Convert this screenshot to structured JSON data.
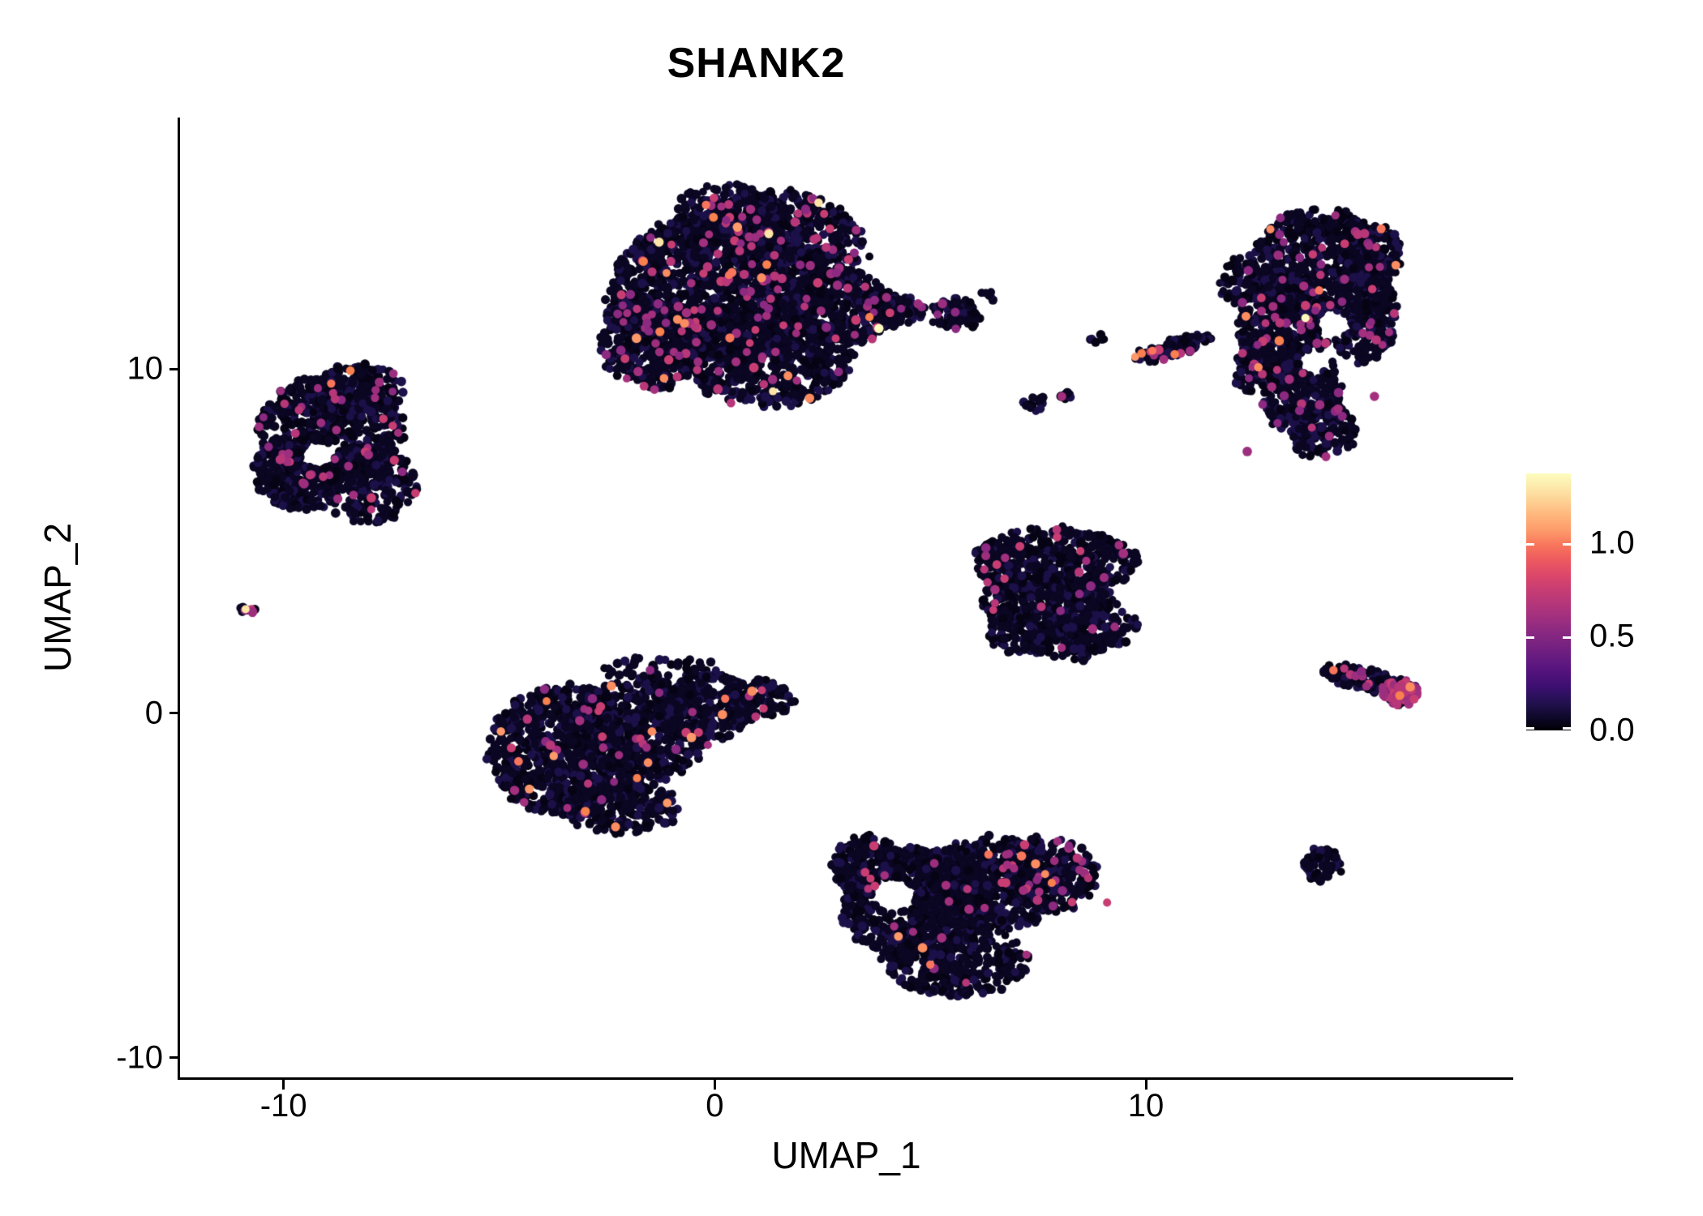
{
  "title": "SHANK2",
  "axes": {
    "x": {
      "label": "UMAP_1",
      "range": [
        -12.4,
        18.5
      ],
      "ticks": [
        -10,
        0,
        10
      ],
      "tick_labels": [
        "-10",
        "0",
        "10"
      ]
    },
    "y": {
      "label": "UMAP_2",
      "range": [
        -10.6,
        17.3
      ],
      "ticks": [
        -10,
        0,
        10
      ],
      "tick_labels": [
        "-10",
        "0",
        "10"
      ]
    }
  },
  "legend": {
    "range": [
      0,
      1.37
    ],
    "ticks": [
      0,
      0.5,
      1.0
    ],
    "tick_labels": [
      "0.0",
      "0.5",
      "1.0"
    ],
    "stops": [
      "#000004",
      "#10092d",
      "#231151",
      "#3b0f70",
      "#51127c",
      "#641a80",
      "#782281",
      "#8c2981",
      "#a3307e",
      "#b73779",
      "#ca3e72",
      "#de4968",
      "#ee5b5e",
      "#f8765c",
      "#fd9a6a",
      "#feb47b",
      "#fecf92",
      "#fce8aa",
      "#fcfdbf"
    ]
  },
  "style": {
    "point_radius": 5.3,
    "palette": {
      "zero": [
        "#0b0723",
        "#0b0723",
        "#0b0723",
        "#060414",
        "#1c1048"
      ],
      "mid": [
        "#8c2981",
        "#a3307e",
        "#b73779",
        "#c83e73",
        "#9c2e7e"
      ],
      "high": [
        "#f8765c",
        "#fb8d61",
        "#fd9a6a",
        "#f9804f"
      ],
      "top": [
        "#fcfdbf",
        "#fde5a7"
      ]
    }
  },
  "chart_data": {
    "type": "scatter",
    "title": "SHANK2",
    "xlabel": "UMAP_1",
    "ylabel": "UMAP_2",
    "value_label_range": [
      0.0,
      1.37
    ],
    "seed": 123456789,
    "clusters": [
      {
        "name": "top-center",
        "mix": {
          "mid": 0.05,
          "high": 0.005,
          "top": 0.0015
        },
        "blobs": [
          {
            "x": 0.0,
            "y": 12.2,
            "rx": 2.4,
            "ry": 2.3,
            "n": 1150
          },
          {
            "x": 1.4,
            "y": 13.6,
            "rx": 2.0,
            "ry": 1.6,
            "n": 650
          },
          {
            "x": 1.2,
            "y": 10.4,
            "rx": 2.0,
            "ry": 1.5,
            "n": 600
          },
          {
            "x": 2.9,
            "y": 11.8,
            "rx": 1.3,
            "ry": 1.1,
            "n": 300
          },
          {
            "x": -1.5,
            "y": 10.8,
            "rx": 1.2,
            "ry": 1.4,
            "n": 300
          },
          {
            "x": 0.2,
            "y": 14.6,
            "rx": 1.2,
            "ry": 0.8,
            "n": 150
          },
          {
            "x": 4.0,
            "y": 11.7,
            "rx": 0.9,
            "ry": 0.5,
            "n": 90
          },
          {
            "x": 5.6,
            "y": 11.6,
            "rx": 0.55,
            "ry": 0.45,
            "n": 70
          },
          {
            "x": 6.3,
            "y": 12.1,
            "rx": 0.2,
            "ry": 0.15,
            "n": 6
          },
          {
            "x": 0.8,
            "y": 12.0,
            "rx": 3.4,
            "ry": 3.0,
            "n": 130
          }
        ]
      },
      {
        "name": "left",
        "mix": {
          "mid": 0.028,
          "high": 0.002
        },
        "holes": [
          {
            "x": -9.2,
            "y": 7.5,
            "r": 0.4
          }
        ],
        "blobs": [
          {
            "x": -8.9,
            "y": 8.3,
            "rx": 1.7,
            "ry": 1.5,
            "n": 520
          },
          {
            "x": -9.6,
            "y": 7.0,
            "rx": 1.1,
            "ry": 1.1,
            "n": 300
          },
          {
            "x": -8.0,
            "y": 6.6,
            "rx": 1.1,
            "ry": 1.1,
            "n": 260
          },
          {
            "x": -8.3,
            "y": 9.4,
            "rx": 1.1,
            "ry": 0.75,
            "n": 190
          }
        ]
      },
      {
        "name": "tiny-left",
        "mix": {
          "mid": 0.1
        },
        "blobs": [
          {
            "x": -10.8,
            "y": 3.0,
            "rx": 0.17,
            "ry": 0.14,
            "n": 12
          }
        ]
      },
      {
        "name": "mid-left",
        "mix": {
          "mid": 0.02,
          "high": 0.006
        },
        "blobs": [
          {
            "x": -3.4,
            "y": -1.1,
            "rx": 1.85,
            "ry": 1.9,
            "n": 780
          },
          {
            "x": -1.7,
            "y": -0.5,
            "rx": 1.6,
            "ry": 1.5,
            "n": 480
          },
          {
            "x": -0.3,
            "y": 0.2,
            "rx": 1.2,
            "ry": 1.0,
            "n": 260
          },
          {
            "x": 1.0,
            "y": 0.45,
            "rx": 0.85,
            "ry": 0.55,
            "n": 110
          },
          {
            "x": -2.2,
            "y": -2.7,
            "rx": 1.4,
            "ry": 0.8,
            "n": 230
          },
          {
            "x": -1.2,
            "y": 1.2,
            "rx": 1.4,
            "ry": 0.5,
            "n": 55
          }
        ]
      },
      {
        "name": "bottom-center",
        "mix": {
          "mid": 0.012,
          "high": 0.002
        },
        "holes": [
          {
            "x": 4.15,
            "y": -5.3,
            "r": 0.5
          }
        ],
        "blobs": [
          {
            "x": 4.6,
            "y": -5.5,
            "rx": 1.7,
            "ry": 1.6,
            "n": 580
          },
          {
            "x": 6.4,
            "y": -5.0,
            "rx": 1.7,
            "ry": 1.4,
            "n": 500
          },
          {
            "x": 7.7,
            "y": -4.7,
            "rx": 1.2,
            "ry": 1.1,
            "n": 300,
            "mix": {
              "mid": 0.1,
              "high": 0.012
            }
          },
          {
            "x": 5.6,
            "y": -7.1,
            "rx": 1.7,
            "ry": 1.1,
            "n": 360
          },
          {
            "x": 3.6,
            "y": -4.4,
            "rx": 0.9,
            "ry": 0.85,
            "n": 170
          }
        ]
      },
      {
        "name": "mid-right-triangle",
        "mix": {
          "mid": 0.025,
          "high": 0.001
        },
        "blobs": [
          {
            "x": 7.9,
            "y": 4.4,
            "rx": 1.9,
            "ry": 1.0,
            "n": 420
          },
          {
            "x": 7.7,
            "y": 3.3,
            "rx": 1.5,
            "ry": 1.0,
            "n": 300
          },
          {
            "x": 7.3,
            "y": 2.4,
            "rx": 1.0,
            "ry": 0.7,
            "n": 150
          },
          {
            "x": 8.9,
            "y": 2.5,
            "rx": 0.9,
            "ry": 0.7,
            "n": 120
          },
          {
            "x": 8.3,
            "y": 1.8,
            "rx": 0.4,
            "ry": 0.3,
            "n": 30
          }
        ]
      },
      {
        "name": "right-crescent",
        "mix": {
          "mid": 0.04,
          "high": 0.003,
          "top": 0.001
        },
        "holes": [
          {
            "x": 14.35,
            "y": 11.3,
            "r": 0.4
          },
          {
            "x": 13.9,
            "y": 10.2,
            "r": 0.35
          }
        ],
        "blobs": [
          {
            "x": 14.0,
            "y": 12.9,
            "rx": 1.6,
            "ry": 1.8,
            "n": 600
          },
          {
            "x": 13.2,
            "y": 11.2,
            "rx": 1.1,
            "ry": 1.5,
            "n": 380
          },
          {
            "x": 13.6,
            "y": 9.4,
            "rx": 0.95,
            "ry": 1.3,
            "n": 260
          },
          {
            "x": 14.1,
            "y": 8.2,
            "rx": 0.75,
            "ry": 0.85,
            "n": 150
          },
          {
            "x": 15.0,
            "y": 11.6,
            "rx": 0.8,
            "ry": 1.4,
            "n": 260
          },
          {
            "x": 15.2,
            "y": 13.3,
            "rx": 0.7,
            "ry": 0.9,
            "n": 150
          },
          {
            "x": 12.2,
            "y": 12.6,
            "rx": 0.5,
            "ry": 0.7,
            "n": 60
          },
          {
            "x": 12.4,
            "y": 9.9,
            "rx": 0.4,
            "ry": 0.6,
            "n": 45
          }
        ]
      },
      {
        "name": "small-streaks-upper-right",
        "mix": {
          "mid": 0.06,
          "high": 0.02
        },
        "blobs": [
          {
            "x": 10.6,
            "y": 10.6,
            "rx": 0.95,
            "ry": 0.25,
            "rot": 20,
            "n": 110
          },
          {
            "x": 7.4,
            "y": 9.0,
            "rx": 0.25,
            "ry": 0.2,
            "n": 14
          },
          {
            "x": 8.1,
            "y": 9.2,
            "rx": 0.2,
            "ry": 0.15,
            "n": 10
          },
          {
            "x": 8.9,
            "y": 10.9,
            "rx": 0.15,
            "ry": 0.12,
            "n": 6
          }
        ]
      },
      {
        "name": "right-small-streak",
        "mix": {
          "mid": 0.06
        },
        "blobs": [
          {
            "x": 15.0,
            "y": 1.0,
            "rx": 1.0,
            "ry": 0.28,
            "rot": -15,
            "n": 130
          },
          {
            "x": 15.9,
            "y": 0.6,
            "rx": 0.4,
            "ry": 0.35,
            "n": 90,
            "mix": {
              "mid": 0.5,
              "high": 0.03
            }
          }
        ]
      },
      {
        "name": "small-round-right",
        "blobs": [
          {
            "x": 14.1,
            "y": -4.4,
            "rx": 0.42,
            "ry": 0.5,
            "n": 70
          }
        ]
      }
    ],
    "highlight_points": [
      {
        "x": -10.88,
        "y": 3.02,
        "level": "top"
      },
      {
        "x": -10.72,
        "y": 2.95,
        "level": "mid"
      },
      {
        "x": -8.45,
        "y": 9.95,
        "level": "high"
      },
      {
        "x": -8.85,
        "y": 9.3,
        "level": "mid"
      },
      {
        "x": 1.35,
        "y": 9.35,
        "level": "top"
      },
      {
        "x": 1.7,
        "y": 9.8,
        "level": "high"
      },
      {
        "x": 0.35,
        "y": 10.9,
        "level": "high"
      },
      {
        "x": 2.2,
        "y": 9.15,
        "level": "high"
      },
      {
        "x": 0.4,
        "y": 12.8,
        "level": "high"
      },
      {
        "x": -3.9,
        "y": 0.35,
        "level": "high"
      },
      {
        "x": -4.55,
        "y": -1.4,
        "level": "high"
      },
      {
        "x": -4.3,
        "y": -2.2,
        "level": "high"
      },
      {
        "x": -3.0,
        "y": -2.85,
        "level": "high"
      },
      {
        "x": -2.3,
        "y": -3.3,
        "level": "high"
      },
      {
        "x": 0.95,
        "y": -0.1,
        "level": "mid"
      },
      {
        "x": 0.8,
        "y": 0.5,
        "level": "mid"
      },
      {
        "x": 6.35,
        "y": -4.1,
        "level": "high"
      },
      {
        "x": 5.0,
        "y": -7.3,
        "level": "high"
      },
      {
        "x": 4.6,
        "y": -6.35,
        "level": "mid"
      },
      {
        "x": 9.1,
        "y": -5.5,
        "level": "mid"
      },
      {
        "x": 9.75,
        "y": 10.35,
        "level": "high"
      },
      {
        "x": 9.9,
        "y": 10.45,
        "level": "high"
      },
      {
        "x": 10.1,
        "y": 10.5,
        "level": "mid"
      },
      {
        "x": 10.3,
        "y": 10.55,
        "level": "mid"
      },
      {
        "x": 8.05,
        "y": 9.2,
        "level": "mid"
      },
      {
        "x": 14.35,
        "y": 1.25,
        "level": "high"
      },
      {
        "x": 14.6,
        "y": 1.3,
        "level": "mid"
      },
      {
        "x": 16.0,
        "y": 0.6,
        "level": "mid"
      },
      {
        "x": 15.85,
        "y": 0.75,
        "level": "mid"
      },
      {
        "x": 12.7,
        "y": 9.85,
        "level": "mid"
      },
      {
        "x": 13.1,
        "y": 13.9,
        "level": "mid"
      },
      {
        "x": 15.3,
        "y": 9.2,
        "level": "mid"
      },
      {
        "x": 12.35,
        "y": 7.6,
        "level": "mid"
      }
    ]
  }
}
